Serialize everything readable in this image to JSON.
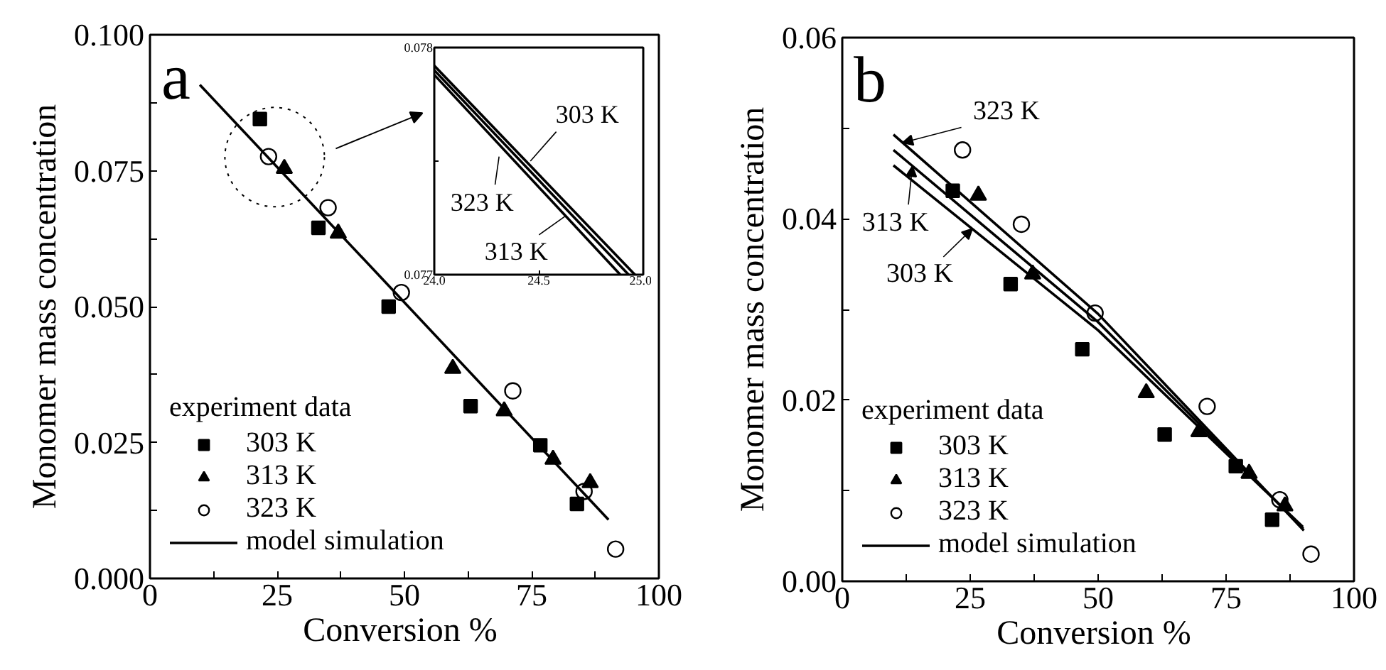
{
  "chart_data": [
    {
      "type": "scatter",
      "title": "a",
      "xlabel": "Conversion  %",
      "ylabel": "Monomer mass concentration",
      "legend_title": "experiment data",
      "legend": "bottom left",
      "xlim": [
        0,
        100
      ],
      "ylim": [
        0,
        0.1
      ],
      "xticks": [
        0,
        {
          "value": 12.5,
          "label": null
        },
        25,
        {
          "value": 37.5,
          "label": null
        },
        50,
        {
          "value": 62.5,
          "label": null
        },
        75,
        {
          "value": 87.5,
          "label": null
        },
        100
      ],
      "yticks": [
        {
          "value": 0,
          "label": "0.000"
        },
        {
          "value": 0.0125,
          "label": null
        },
        {
          "value": 0.025,
          "label": "0.025"
        },
        {
          "value": 0.0375,
          "label": null
        },
        {
          "value": 0.05,
          "label": "0.050"
        },
        {
          "value": 0.0625,
          "label": null
        },
        {
          "value": 0.075,
          "label": "0.075"
        },
        {
          "value": 0.0875,
          "label": null
        },
        {
          "value": 0.1,
          "label": "0.100"
        }
      ],
      "series": [
        {
          "name": "303 K",
          "type": "scatter",
          "marker": "square",
          "color": "#000000",
          "x": [
            21.6,
            33.1,
            46.9,
            63.0,
            76.7,
            83.9
          ],
          "values": [
            0.0845,
            0.0645,
            0.05,
            0.0317,
            0.0245,
            0.0137
          ]
        },
        {
          "name": "313 K",
          "type": "scatter",
          "marker": "triangle",
          "color": "#000000",
          "x": [
            26.4,
            37.0,
            59.5,
            69.6,
            79.2,
            86.5
          ],
          "values": [
            0.0754,
            0.0635,
            0.0386,
            0.0308,
            0.0219,
            0.0176
          ]
        },
        {
          "name": "323 K",
          "type": "scatter",
          "marker": "circle",
          "color": "#000000",
          "x": [
            23.3,
            35.0,
            49.4,
            71.3,
            85.3,
            91.5
          ],
          "values": [
            0.0776,
            0.0682,
            0.0526,
            0.0345,
            0.016,
            0.0054
          ]
        },
        {
          "name": "model simulation",
          "type": "line",
          "line_style": "solid",
          "color": "#000000",
          "x": [
            9.8,
            90.1
          ],
          "values": [
            0.0908,
            0.0108
          ]
        }
      ]
    },
    {
      "type": "scatter",
      "title": "b",
      "xlabel": "Conversion  %",
      "ylabel": "Monomer mass concentration",
      "legend_title": "experiment data",
      "legend": "bottom left",
      "xlim": [
        0,
        100
      ],
      "ylim": [
        0,
        0.06
      ],
      "xticks": [
        0,
        {
          "value": 12.5,
          "label": null
        },
        25,
        {
          "value": 37.5,
          "label": null
        },
        50,
        {
          "value": 62.5,
          "label": null
        },
        75,
        {
          "value": 87.5,
          "label": null
        },
        100
      ],
      "yticks": [
        {
          "value": 0,
          "label": "0.00"
        },
        {
          "value": 0.01,
          "label": null
        },
        {
          "value": 0.02,
          "label": "0.02"
        },
        {
          "value": 0.03,
          "label": null
        },
        {
          "value": 0.04,
          "label": "0.04"
        },
        {
          "value": 0.05,
          "label": null
        },
        {
          "value": 0.06,
          "label": "0.06"
        }
      ],
      "series": [
        {
          "name": "303 K",
          "type": "scatter",
          "marker": "square",
          "color": "#000000",
          "x": [
            21.6,
            32.9,
            46.9,
            63.0,
            76.9,
            84.0
          ],
          "values": [
            0.0431,
            0.0328,
            0.0256,
            0.0162,
            0.0127,
            0.0068
          ]
        },
        {
          "name": "313 K",
          "type": "scatter",
          "marker": "triangle",
          "color": "#000000",
          "x": [
            26.6,
            37.2,
            59.4,
            69.7,
            79.5,
            86.5
          ],
          "values": [
            0.0426,
            0.0339,
            0.0208,
            0.0165,
            0.0119,
            0.0083
          ]
        },
        {
          "name": "323 K",
          "type": "scatter",
          "marker": "circle",
          "color": "#000000",
          "x": [
            23.5,
            35.0,
            49.4,
            71.3,
            85.5,
            91.6
          ],
          "values": [
            0.0476,
            0.0394,
            0.0296,
            0.0193,
            0.009,
            0.003
          ]
        },
        {
          "name": "model simulation",
          "type": "line",
          "line_style": "solid",
          "color": "#000000",
          "x": [
            10.0,
            50.0,
            90.2
          ],
          "values": [
            0.0493,
            0.0295,
            0.0056
          ]
        },
        {
          "type": "line",
          "line_style": "solid",
          "color": "#000000",
          "x": [
            10.0,
            50.0,
            90.1
          ],
          "values": [
            0.0476,
            0.0286,
            0.0058
          ]
        },
        {
          "type": "line",
          "line_style": "solid",
          "color": "#000000",
          "x": [
            10.0,
            50.0,
            90.0
          ],
          "values": [
            0.0459,
            0.0277,
            0.006
          ]
        }
      ],
      "annotations": [
        {
          "text": "323 K",
          "x": 11.8,
          "y": 0.0484
        },
        {
          "text": "313 K",
          "x": 13.7,
          "y": 0.0458
        },
        {
          "text": "303 K",
          "x": 25.4,
          "y": 0.0389
        }
      ]
    },
    {
      "type": "line",
      "xlim": [
        24.0,
        25.0
      ],
      "ylim": [
        0.077,
        0.078
      ],
      "xticks": [
        {
          "value": 24.0,
          "label": "24.0"
        },
        {
          "value": 24.5,
          "label": "24.5"
        },
        {
          "value": 25.0,
          "label": "25.0"
        }
      ],
      "yticks": [
        {
          "value": 0.077,
          "label": "0.077"
        },
        {
          "value": 0.0775,
          "label": null
        },
        {
          "value": 0.078,
          "label": "0.078"
        }
      ],
      "series": [
        {
          "color": "#000000",
          "line_style": "solid",
          "x": [
            24.0,
            24.96
          ],
          "values": [
            0.07792,
            0.077
          ]
        },
        {
          "color": "#000000",
          "line_style": "solid",
          "x": [
            24.0,
            24.93
          ],
          "values": [
            0.0779,
            0.077
          ]
        },
        {
          "color": "#000000",
          "line_style": "solid",
          "x": [
            24.0,
            24.89
          ],
          "values": [
            0.07788,
            0.077
          ]
        }
      ],
      "annotations": [
        {
          "text": "303 K",
          "x": 24.46,
          "y": 0.0775
        },
        {
          "text": "323 K",
          "x": 24.31,
          "y": 0.07752
        },
        {
          "text": "313 K",
          "x": 24.63,
          "y": 0.07726
        }
      ]
    }
  ]
}
